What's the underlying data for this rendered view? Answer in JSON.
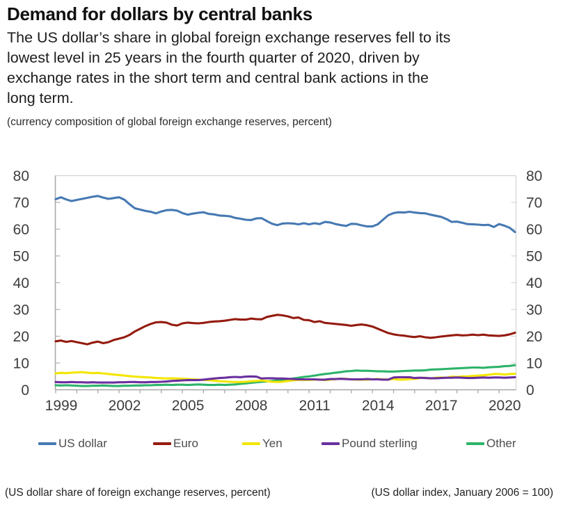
{
  "header": {
    "title": "Demand for dollars by central banks",
    "subtitle_lines": [
      "The US dollar’s share in global foreign exchange reserves fell to its",
      "lowest level in 25 years in the fourth quarter of 2020, driven by",
      "exchange rates in the short term and central bank actions in the",
      "long term."
    ],
    "note": "(currency composition of global foreign exchange reserves, percent)"
  },
  "legend": {
    "items": [
      {
        "label": "US dollar",
        "color": "#4679B2"
      },
      {
        "label": "Euro",
        "color": "#941B0F"
      },
      {
        "label": "Yen",
        "color": "#F3E600"
      },
      {
        "label": "Pound sterling",
        "color": "#6A2F9E"
      },
      {
        "label": "Other",
        "color": "#2DB36A"
      }
    ]
  },
  "footer": {
    "caption_left": "(US dollar share of foreign exchange reserves, percent)",
    "caption_right": "(US dollar index, January 2006 = 100)"
  },
  "chart_data": {
    "type": "line",
    "title": "Demand for dollars by central banks",
    "subtitle": "(currency composition of global foreign exchange reserves, percent)",
    "unit": "percent",
    "frequency": "quarterly",
    "x_start_year": 1999,
    "x_end": "2020 Q4",
    "xticks": [
      1999,
      2002,
      2005,
      2008,
      2011,
      2014,
      2017,
      2020
    ],
    "yticks": [
      0,
      10,
      20,
      30,
      40,
      50,
      60,
      70,
      80
    ],
    "ylim": [
      0,
      80
    ],
    "grid": false,
    "legend_position": "bottom",
    "axis_color": "#a6a6a6",
    "series": [
      {
        "name": "US dollar",
        "color": "#4679B2",
        "values": [
          71.2,
          71.9,
          71.1,
          70.5,
          70.9,
          71.3,
          71.7,
          72.1,
          72.4,
          71.8,
          71.3,
          71.6,
          71.9,
          71.0,
          69.3,
          67.8,
          67.3,
          66.8,
          66.5,
          65.9,
          66.6,
          67.1,
          67.2,
          66.9,
          66.0,
          65.4,
          65.8,
          66.1,
          66.3,
          65.7,
          65.5,
          65.1,
          65.0,
          64.8,
          64.2,
          63.9,
          63.5,
          63.4,
          64.0,
          64.1,
          63.0,
          62.0,
          61.5,
          62.1,
          62.2,
          62.1,
          61.8,
          62.2,
          61.8,
          62.2,
          61.9,
          62.7,
          62.5,
          61.9,
          61.5,
          61.2,
          62.0,
          61.9,
          61.4,
          61.0,
          61.0,
          61.8,
          63.5,
          65.2,
          66.0,
          66.3,
          66.2,
          66.5,
          66.2,
          66.0,
          65.9,
          65.4,
          65.0,
          64.6,
          63.8,
          62.7,
          62.8,
          62.4,
          61.9,
          61.8,
          61.7,
          61.5,
          61.6,
          60.8,
          61.9,
          61.3,
          60.5,
          58.9
        ]
      },
      {
        "name": "Euro",
        "color": "#941B0F",
        "values": [
          18.1,
          18.4,
          17.9,
          18.2,
          17.8,
          17.4,
          17.0,
          17.6,
          18.0,
          17.4,
          17.8,
          18.6,
          19.1,
          19.6,
          20.5,
          21.8,
          22.8,
          23.8,
          24.6,
          25.2,
          25.3,
          25.1,
          24.3,
          24.0,
          24.8,
          25.1,
          24.9,
          24.8,
          25.0,
          25.3,
          25.5,
          25.6,
          25.8,
          26.1,
          26.4,
          26.2,
          26.2,
          26.6,
          26.4,
          26.3,
          27.2,
          27.6,
          28.0,
          27.8,
          27.4,
          26.8,
          27.0,
          26.1,
          26.0,
          25.3,
          25.6,
          25.0,
          24.8,
          24.6,
          24.4,
          24.2,
          23.9,
          24.2,
          24.4,
          24.1,
          23.6,
          22.8,
          22.0,
          21.2,
          20.7,
          20.4,
          20.2,
          19.9,
          19.7,
          20.0,
          19.6,
          19.4,
          19.6,
          19.9,
          20.1,
          20.3,
          20.5,
          20.3,
          20.4,
          20.6,
          20.4,
          20.6,
          20.3,
          20.2,
          20.1,
          20.3,
          20.7,
          21.3
        ]
      },
      {
        "name": "Yen",
        "color": "#F3E600",
        "values": [
          6.1,
          6.3,
          6.2,
          6.4,
          6.5,
          6.6,
          6.4,
          6.2,
          6.3,
          6.1,
          5.9,
          5.7,
          5.5,
          5.3,
          5.1,
          4.9,
          4.8,
          4.7,
          4.6,
          4.4,
          4.3,
          4.2,
          4.3,
          4.2,
          4.1,
          4.0,
          3.9,
          3.8,
          3.7,
          3.6,
          3.4,
          3.2,
          3.1,
          3.0,
          2.9,
          2.9,
          3.0,
          3.2,
          3.3,
          3.5,
          3.2,
          3.0,
          2.9,
          3.0,
          3.3,
          3.5,
          3.7,
          3.7,
          3.7,
          3.8,
          3.8,
          3.6,
          3.8,
          4.0,
          4.1,
          4.1,
          3.9,
          3.8,
          3.8,
          3.8,
          3.9,
          4.0,
          3.9,
          3.9,
          4.0,
          3.8,
          3.8,
          4.0,
          4.1,
          4.4,
          4.5,
          4.2,
          4.5,
          4.6,
          4.5,
          4.9,
          4.8,
          5.0,
          5.0,
          5.2,
          5.3,
          5.4,
          5.6,
          5.9,
          5.9,
          5.7,
          5.9,
          6.0
        ]
      },
      {
        "name": "Pound sterling",
        "color": "#6A2F9E",
        "values": [
          2.9,
          2.8,
          2.8,
          2.9,
          2.8,
          2.8,
          2.7,
          2.8,
          2.7,
          2.7,
          2.7,
          2.7,
          2.8,
          2.8,
          2.9,
          2.9,
          2.8,
          2.8,
          2.9,
          2.9,
          3.0,
          3.1,
          3.3,
          3.4,
          3.5,
          3.6,
          3.6,
          3.6,
          3.8,
          4.0,
          4.2,
          4.4,
          4.5,
          4.7,
          4.8,
          4.7,
          4.9,
          5.0,
          4.9,
          4.2,
          4.3,
          4.3,
          4.2,
          4.2,
          4.1,
          4.0,
          3.9,
          3.9,
          3.9,
          3.9,
          3.8,
          3.8,
          4.0,
          4.0,
          4.1,
          4.0,
          3.9,
          3.9,
          3.9,
          4.0,
          3.9,
          3.9,
          3.8,
          3.8,
          4.6,
          4.7,
          4.7,
          4.7,
          4.4,
          4.5,
          4.4,
          4.3,
          4.3,
          4.4,
          4.5,
          4.5,
          4.6,
          4.5,
          4.4,
          4.4,
          4.5,
          4.6,
          4.5,
          4.6,
          4.6,
          4.5,
          4.6,
          4.7
        ]
      },
      {
        "name": "Other",
        "color": "#2DB36A",
        "values": [
          1.7,
          1.6,
          1.7,
          1.6,
          1.5,
          1.4,
          1.4,
          1.5,
          1.5,
          1.6,
          1.5,
          1.4,
          1.4,
          1.5,
          1.5,
          1.6,
          1.6,
          1.7,
          1.7,
          1.8,
          1.8,
          1.9,
          1.8,
          1.9,
          1.9,
          1.8,
          1.9,
          2.0,
          1.9,
          1.8,
          1.8,
          1.9,
          1.8,
          1.9,
          2.0,
          2.2,
          2.4,
          2.6,
          2.8,
          3.0,
          3.1,
          3.3,
          3.5,
          3.7,
          3.9,
          4.2,
          4.5,
          4.8,
          5.0,
          5.3,
          5.6,
          5.9,
          6.1,
          6.4,
          6.6,
          6.9,
          7.0,
          7.2,
          7.1,
          7.1,
          7.0,
          6.9,
          6.9,
          6.8,
          6.8,
          6.9,
          7.0,
          7.1,
          7.2,
          7.2,
          7.3,
          7.5,
          7.6,
          7.7,
          7.8,
          7.9,
          8.0,
          8.1,
          8.2,
          8.3,
          8.3,
          8.2,
          8.4,
          8.5,
          8.6,
          8.8,
          8.9,
          9.2
        ]
      }
    ]
  }
}
